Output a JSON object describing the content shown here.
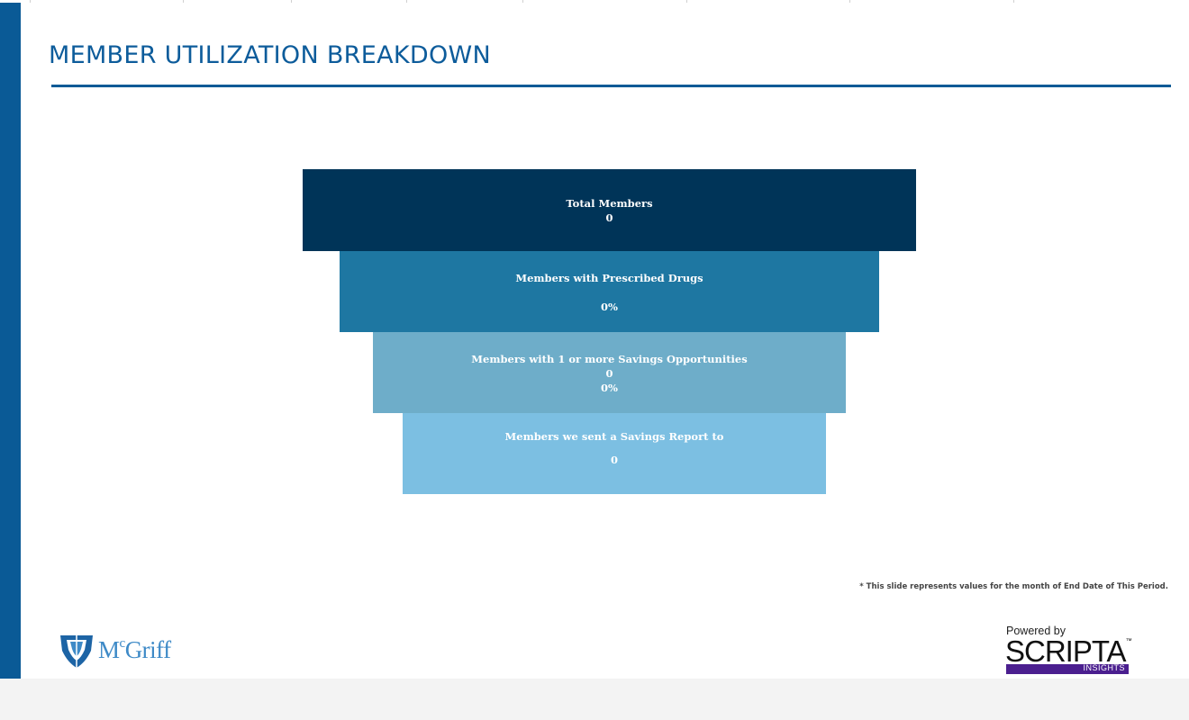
{
  "title": "MEMBER UTILIZATION BREAKDOWN",
  "funnel": {
    "total_members": {
      "label": "Total Members",
      "value": "0"
    },
    "prescribed": {
      "label": "Members with Prescribed Drugs",
      "value": "0%"
    },
    "savings_opps": {
      "label": "Members with 1 or more Savings Opportunities",
      "value": "0",
      "percent": "0%"
    },
    "savings_report": {
      "label": "Members we sent a Savings Report to",
      "value": "0"
    }
  },
  "colors": {
    "total_members": "#003458",
    "prescribed": "#1e77a2",
    "savings_opps": "#6eadc9",
    "savings_report": "#7cbfe2",
    "accent": "#0a5a96"
  },
  "footnote": "* This slide represents values for the month of End Date of This Period.",
  "logos": {
    "mcgriff": {
      "icon": "mcgriff-shield-logo",
      "text": "McGriff"
    },
    "scripta": {
      "powered_by": "Powered by",
      "name": "SCRIPTA",
      "trademark": "™",
      "tagline": "INSIGHTS"
    }
  }
}
